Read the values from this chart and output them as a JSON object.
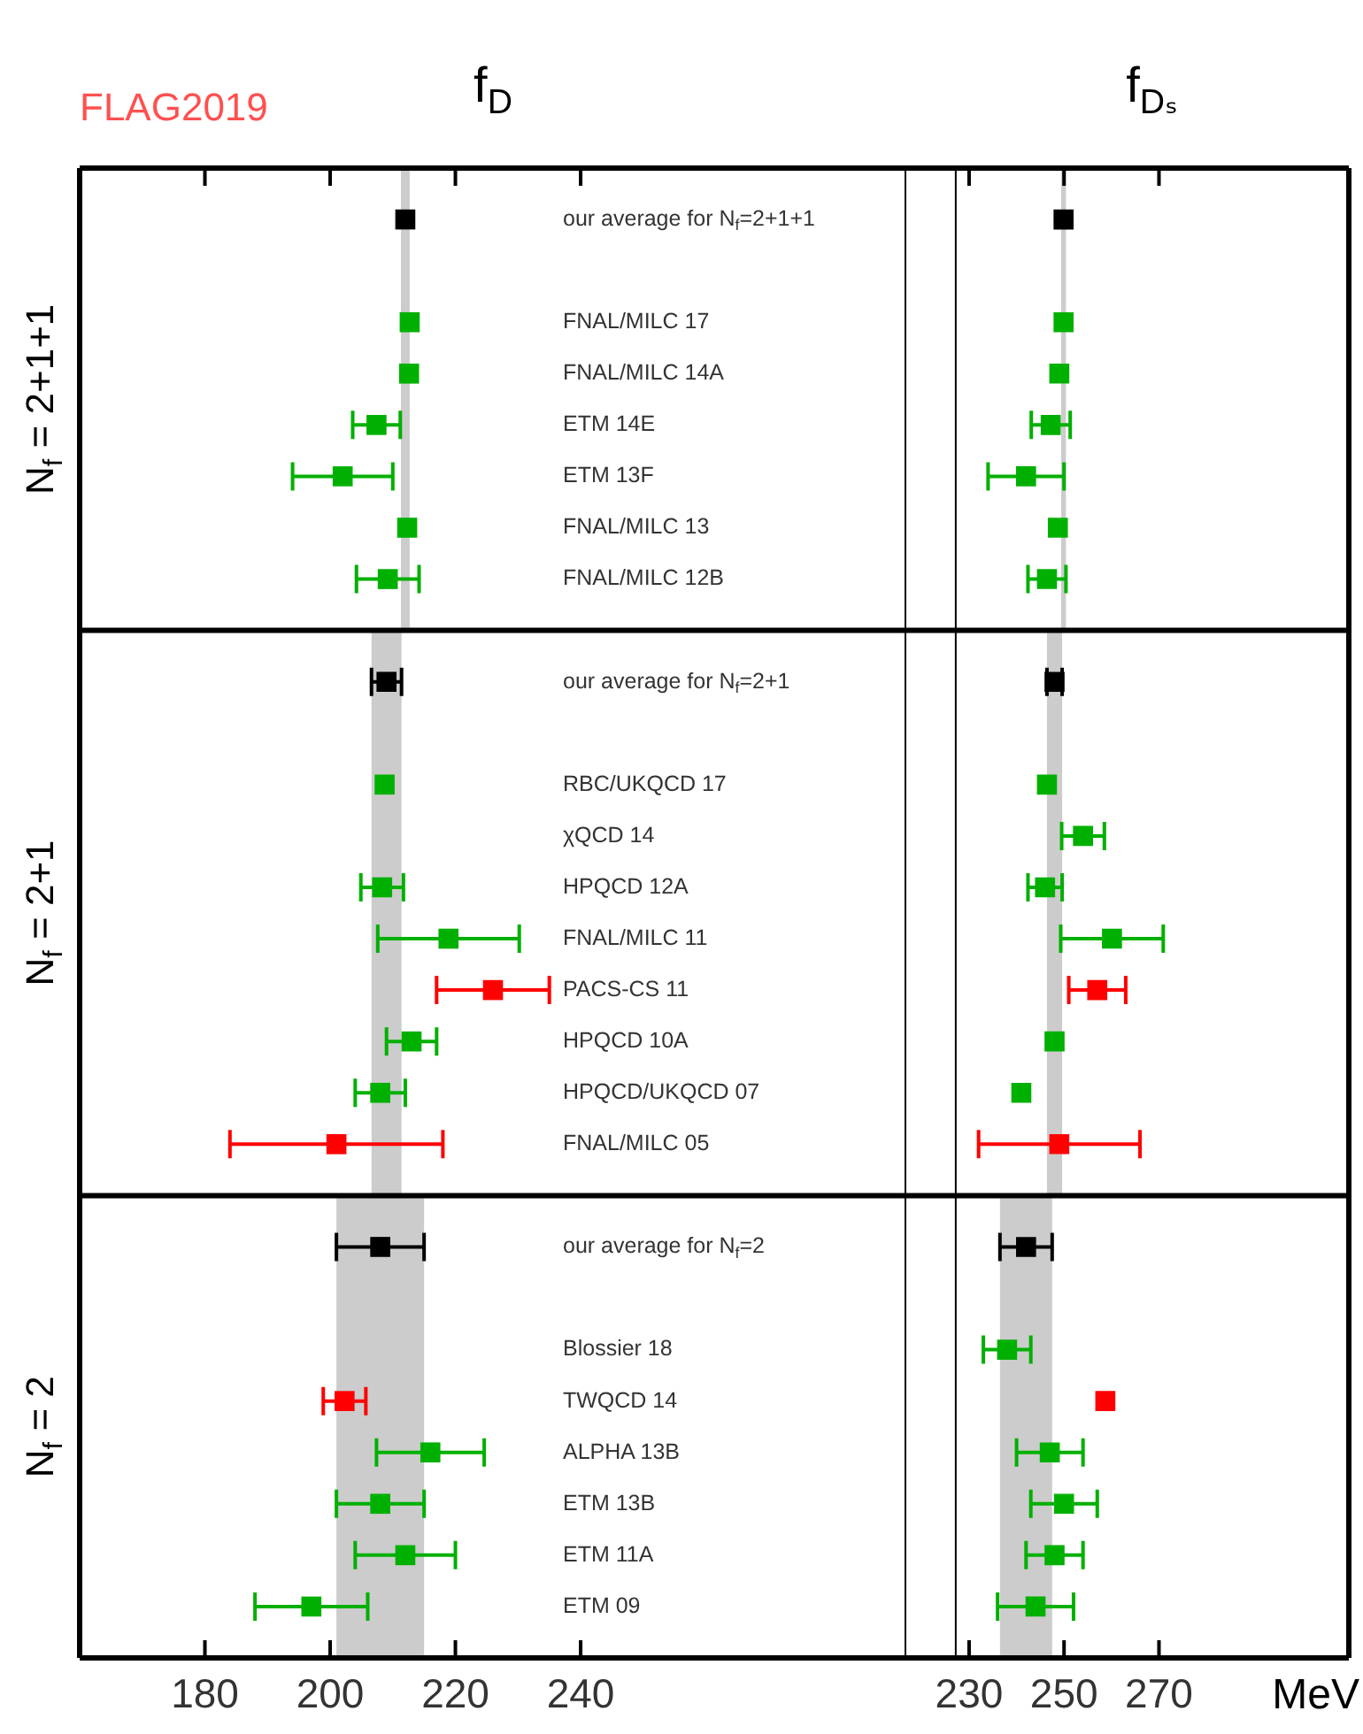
{
  "chart_data": [
    {
      "type": "scatter",
      "orientation": "horizontal",
      "title": "f$_{D}$",
      "annotations": [
        "FLAG2019",
        "N$_{f}$ = 2+1+1",
        "N$_{f}$ = 2+1",
        "N$_{f}$ = 2"
      ],
      "marker": "square",
      "xlim": [
        160,
        292
      ],
      "xticks": [
        180,
        200,
        220,
        240
      ],
      "categories": [
        "our average for N$_{f}$=2+1+1",
        null,
        "FNAL/MILC 17",
        "FNAL/MILC 14A",
        "ETM 14E",
        "ETM 13F",
        "FNAL/MILC 13",
        "FNAL/MILC 12B",
        null,
        "our average for N$_{f}$=2+1",
        null,
        "RBC/UKQCD 17",
        "χQCD 14",
        "HPQCD 12A",
        "FNAL/MILC 11",
        "PACS-CS 11",
        "HPQCD 10A",
        "HPQCD/UKQCD 07",
        "FNAL/MILC 05",
        null,
        "our average for N$_{f}$=2",
        null,
        "Blossier 18",
        "TWQCD 14",
        "ALPHA 13B",
        "ETM 13B",
        "ETM 11A",
        "ETM 09"
      ],
      "bands": [
        {
          "axis": "x",
          "from": 211.3,
          "to": 212.7,
          "color": "#cccccc"
        },
        {
          "axis": "x",
          "from": 206.6,
          "to": 211.4,
          "color": "#cccccc"
        },
        {
          "axis": "x",
          "from": 201,
          "to": 215,
          "color": "#cccccc"
        }
      ],
      "series": [
        {
          "color": "#000000",
          "values": [
            212.0,
            null,
            null,
            null,
            null,
            null,
            null,
            null,
            null,
            209.0,
            null,
            null,
            null,
            null,
            null,
            null,
            null,
            null,
            null,
            null,
            208,
            null,
            null,
            null,
            null,
            null,
            null,
            null
          ],
          "errors": [
            null,
            null,
            null,
            null,
            null,
            null,
            null,
            null,
            null,
            2.4,
            null,
            null,
            null,
            null,
            null,
            null,
            null,
            null,
            null,
            null,
            7,
            null,
            null,
            null,
            null,
            null,
            null,
            null
          ]
        },
        {
          "color": "#00b000",
          "values": [
            null,
            null,
            212.7,
            212.6,
            207.4,
            202,
            212.3,
            209.2,
            null,
            null,
            null,
            208.7,
            null,
            208.3,
            218.9,
            null,
            213,
            208,
            null,
            null,
            null,
            null,
            null,
            null,
            216,
            208,
            212,
            197
          ],
          "errors": [
            null,
            null,
            null,
            null,
            3.8,
            8,
            null,
            5,
            null,
            null,
            null,
            null,
            null,
            3.4,
            11.3,
            null,
            4,
            4,
            null,
            null,
            null,
            null,
            null,
            null,
            8.6,
            7,
            8,
            9
          ]
        },
        {
          "color": "#ff0000",
          "values": [
            null,
            null,
            null,
            null,
            null,
            null,
            null,
            null,
            null,
            null,
            null,
            null,
            null,
            null,
            null,
            226,
            null,
            null,
            201,
            null,
            null,
            null,
            null,
            202.3,
            null,
            null,
            null,
            null
          ],
          "errors": [
            null,
            null,
            null,
            null,
            null,
            null,
            null,
            null,
            null,
            null,
            null,
            null,
            null,
            null,
            null,
            9,
            null,
            null,
            17,
            null,
            null,
            null,
            null,
            3.4,
            null,
            null,
            null,
            null
          ]
        }
      ]
    },
    {
      "type": "scatter",
      "orientation": "horizontal",
      "title": "f$_{Dₛ}$",
      "xlabel": "MeV",
      "marker": "square",
      "tick_labels": "x",
      "xlim": [
        227,
        310
      ],
      "xticks": [
        230,
        250,
        270
      ],
      "categories": [
        null,
        null,
        null,
        null,
        null,
        null,
        null,
        null,
        null,
        null,
        null,
        null,
        null,
        null,
        null,
        null,
        null,
        null,
        null,
        null,
        null,
        null,
        null,
        null,
        null,
        null,
        null,
        null
      ],
      "bands": [
        {
          "axis": "x",
          "from": 249.4,
          "to": 250.4,
          "color": "#cccccc"
        },
        {
          "axis": "x",
          "from": 246.4,
          "to": 249.6,
          "color": "#cccccc"
        },
        {
          "axis": "x",
          "from": 236.5,
          "to": 247.5,
          "color": "#cccccc"
        }
      ],
      "series": [
        {
          "color": "#000000",
          "values": [
            249.9,
            null,
            null,
            null,
            null,
            null,
            null,
            null,
            null,
            248.0,
            null,
            null,
            null,
            null,
            null,
            null,
            null,
            null,
            null,
            null,
            242,
            null,
            null,
            null,
            null,
            null,
            null,
            null
          ],
          "errors": [
            null,
            null,
            null,
            null,
            null,
            null,
            null,
            null,
            null,
            1.6,
            null,
            null,
            null,
            null,
            null,
            null,
            null,
            null,
            null,
            null,
            5.5,
            null,
            null,
            null,
            null,
            null,
            null,
            null
          ]
        },
        {
          "color": "#00b000",
          "values": [
            null,
            null,
            249.9,
            249.0,
            247.2,
            242,
            248.7,
            246.4,
            null,
            null,
            null,
            246.4,
            254,
            246,
            260.1,
            null,
            248.0,
            241,
            null,
            null,
            null,
            null,
            238,
            null,
            247,
            250,
            248,
            244
          ],
          "errors": [
            null,
            null,
            null,
            null,
            4.1,
            8,
            null,
            4,
            null,
            null,
            null,
            null,
            4.5,
            3.6,
            10.8,
            null,
            null,
            null,
            null,
            null,
            null,
            null,
            5,
            null,
            7,
            7,
            6,
            8
          ]
        },
        {
          "color": "#ff0000",
          "values": [
            null,
            null,
            null,
            null,
            null,
            null,
            null,
            null,
            null,
            null,
            null,
            null,
            null,
            null,
            null,
            257,
            null,
            null,
            249,
            null,
            null,
            null,
            null,
            258.7,
            null,
            null,
            null,
            null
          ],
          "errors": [
            null,
            null,
            null,
            null,
            null,
            null,
            null,
            null,
            null,
            null,
            null,
            null,
            null,
            null,
            null,
            6,
            null,
            null,
            17,
            null,
            null,
            null,
            null,
            null,
            null,
            null,
            null,
            null
          ]
        }
      ]
    }
  ]
}
